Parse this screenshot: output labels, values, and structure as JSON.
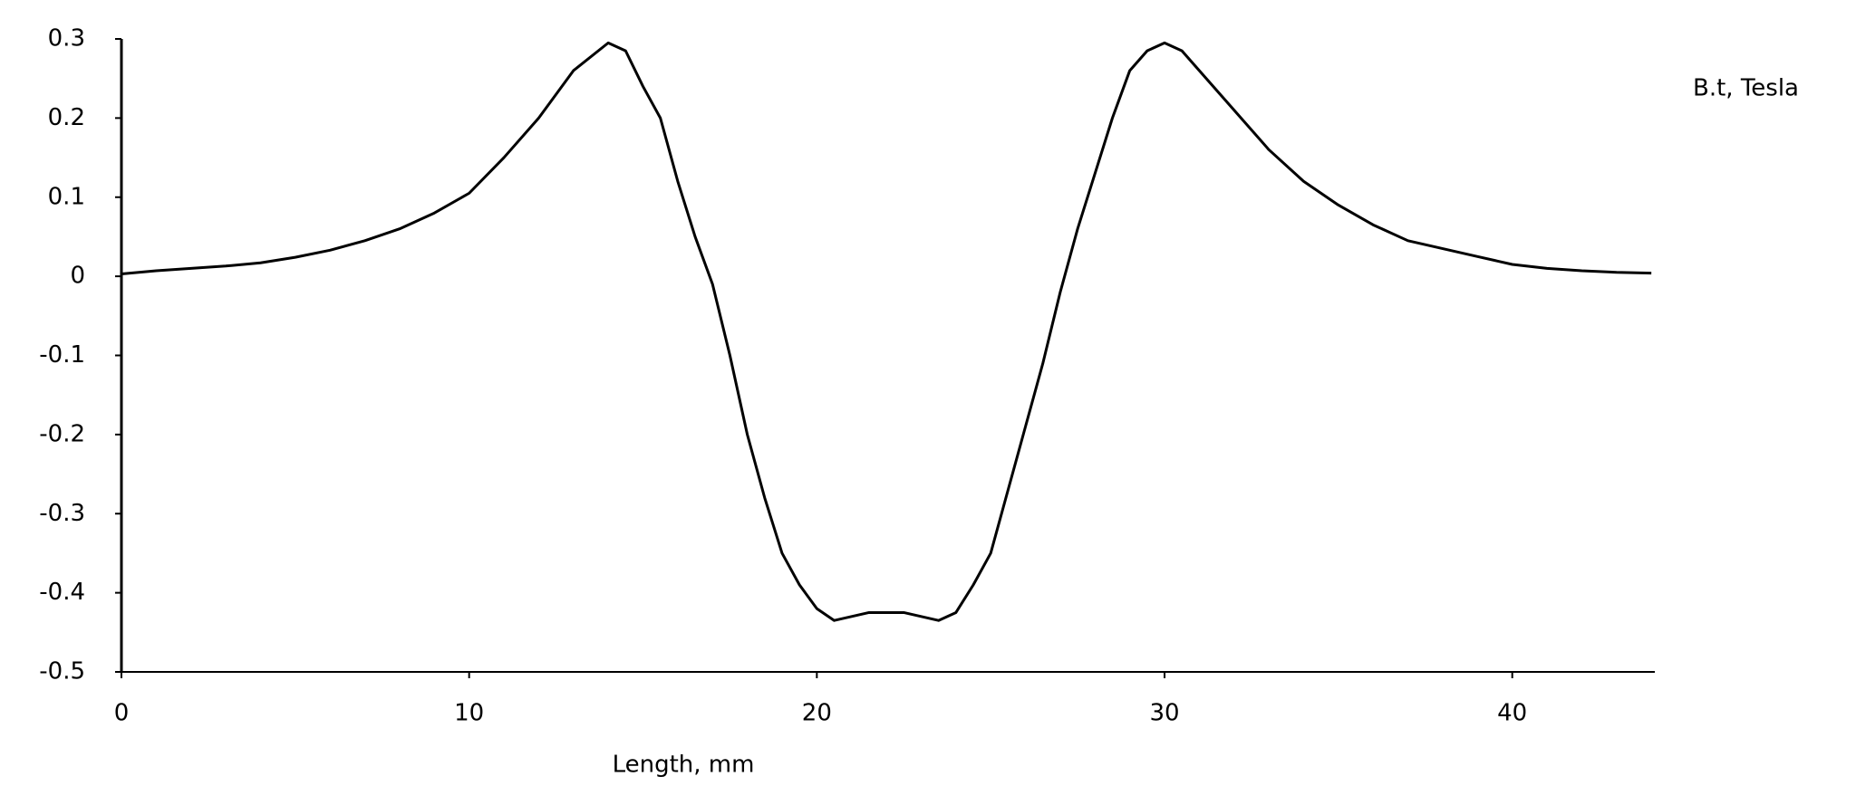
{
  "chart_data": {
    "type": "line",
    "x_label": "Length, mm",
    "x": [
      0,
      1,
      2,
      3,
      4,
      5,
      6,
      7,
      8,
      9,
      10,
      11,
      12,
      13,
      14,
      14.5,
      15,
      15.5,
      16,
      16.5,
      17,
      17.5,
      18,
      18.5,
      19,
      19.5,
      20,
      20.5,
      21,
      21.5,
      22,
      22.5,
      23,
      23.5,
      24,
      24.5,
      25,
      25.5,
      26,
      26.5,
      27,
      27.5,
      28,
      28.5,
      29,
      29.5,
      30,
      30.5,
      31,
      32,
      33,
      34,
      35,
      36,
      37,
      38,
      39,
      40,
      41,
      42,
      43,
      44
    ],
    "series": [
      {
        "name": "B.t, Tesla",
        "color": "#000000",
        "values": [
          0.003,
          0.007,
          0.01,
          0.013,
          0.017,
          0.024,
          0.033,
          0.045,
          0.06,
          0.08,
          0.105,
          0.15,
          0.2,
          0.26,
          0.295,
          0.285,
          0.24,
          0.2,
          0.12,
          0.05,
          -0.01,
          -0.1,
          -0.2,
          -0.28,
          -0.35,
          -0.39,
          -0.42,
          -0.435,
          -0.43,
          -0.425,
          -0.425,
          -0.425,
          -0.43,
          -0.435,
          -0.425,
          -0.39,
          -0.35,
          -0.27,
          -0.19,
          -0.11,
          -0.02,
          0.06,
          0.13,
          0.2,
          0.26,
          0.285,
          0.295,
          0.285,
          0.26,
          0.21,
          0.16,
          0.12,
          0.09,
          0.065,
          0.045,
          0.035,
          0.025,
          0.015,
          0.01,
          0.007,
          0.005,
          0.004
        ]
      }
    ],
    "xlim": [
      0,
      44.1
    ],
    "xticks": [
      0,
      10,
      20,
      30,
      40
    ],
    "ylim": [
      -0.5,
      0.3
    ],
    "yticks": [
      0.3,
      0.2,
      0.1,
      0,
      -0.1,
      -0.2,
      -0.3,
      -0.4,
      -0.5
    ],
    "grid": false
  }
}
